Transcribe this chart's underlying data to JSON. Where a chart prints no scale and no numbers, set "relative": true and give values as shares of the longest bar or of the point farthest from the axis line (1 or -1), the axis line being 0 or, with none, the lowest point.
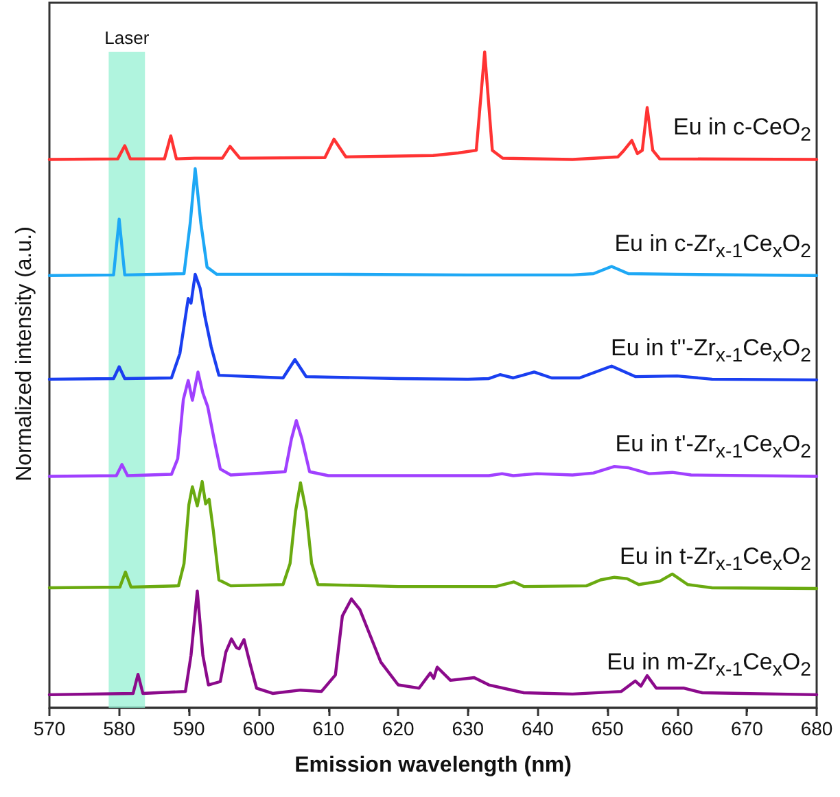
{
  "chart_data": {
    "type": "line",
    "relative": true,
    "xlabel": "Emission wavelength (nm)",
    "ylabel": "Normalized intensity (a.u.)",
    "xlim": [
      570,
      680
    ],
    "xticks": [
      570,
      580,
      590,
      600,
      610,
      620,
      630,
      640,
      650,
      660,
      670,
      680
    ],
    "grid": false,
    "legend": false,
    "marker": "none",
    "line_style": "solid",
    "bands": [
      {
        "axis": "x",
        "from": 578.5,
        "to": 583.7,
        "label": "Laser",
        "color": "#8ff0d0"
      }
    ],
    "series": [
      {
        "name": "Eu in c-CeO$_{2}$",
        "color": "#ff3333",
        "x": [
          570,
          579.8,
          580.8,
          581.6,
          586.5,
          587.4,
          588.2,
          590.8,
          594.8,
          595.9,
          597.3,
          609.5,
          610.8,
          612.5,
          625,
          628.6,
          631.2,
          632.4,
          633.5,
          635,
          645,
          651.5,
          652.3,
          653.5,
          654.3,
          655,
          655.7,
          656.5,
          657.5,
          680
        ],
        "values": [
          0.836,
          0.837,
          0.857,
          0.837,
          0.837,
          0.872,
          0.837,
          0.838,
          0.838,
          0.856,
          0.838,
          0.839,
          0.867,
          0.84,
          0.842,
          0.846,
          0.85,
          1.0,
          0.85,
          0.838,
          0.836,
          0.84,
          0.849,
          0.865,
          0.845,
          0.85,
          0.915,
          0.85,
          0.837,
          0.836
        ]
      },
      {
        "name": "Eu in c-Zr$_{x-1}$Ce$_{x}$O$_{2}$",
        "color": "#1ea8f5",
        "x": [
          570,
          579.2,
          580.0,
          580.8,
          589.3,
          590.2,
          590.9,
          591.7,
          592.6,
          594,
          610,
          630,
          645,
          648,
          650.6,
          653,
          660,
          680
        ],
        "values": [
          0.659,
          0.66,
          0.745,
          0.66,
          0.662,
          0.74,
          0.822,
          0.74,
          0.672,
          0.661,
          0.661,
          0.66,
          0.66,
          0.662,
          0.673,
          0.662,
          0.661,
          0.659
        ]
      },
      {
        "name": "Eu in t''-Zr$_{x-1}$Ce$_{x}$O$_{2}$",
        "color": "#1a3ff0",
        "x": [
          570,
          579.2,
          580,
          580.8,
          587.5,
          588.7,
          589.9,
          590.3,
          590.9,
          591.6,
          592.3,
          593.2,
          594.3,
          603.5,
          605.2,
          606.8,
          620,
          630,
          633,
          634.6,
          636.5,
          639.5,
          642,
          646,
          650.6,
          654,
          660,
          665,
          680
        ],
        "values": [
          0.501,
          0.502,
          0.52,
          0.502,
          0.503,
          0.54,
          0.624,
          0.617,
          0.661,
          0.64,
          0.596,
          0.55,
          0.507,
          0.503,
          0.531,
          0.505,
          0.502,
          0.501,
          0.502,
          0.508,
          0.503,
          0.512,
          0.503,
          0.503,
          0.521,
          0.505,
          0.506,
          0.501,
          0.5
        ]
      },
      {
        "name": "Eu in t'-Zr$_{x-1}$Ce$_{x}$O$_{2}$",
        "color": "#a040ff",
        "x": [
          570,
          579.6,
          580.4,
          581.2,
          587.5,
          588.4,
          589.2,
          589.9,
          590.5,
          591.3,
          592,
          592.7,
          593.6,
          594.5,
          596,
          603.8,
          604.7,
          605.4,
          606.2,
          607.3,
          610,
          633,
          634.9,
          636.5,
          639.9,
          645,
          648,
          651,
          653,
          656,
          659.3,
          662,
          680
        ],
        "values": [
          0.353,
          0.354,
          0.371,
          0.354,
          0.356,
          0.38,
          0.47,
          0.499,
          0.469,
          0.512,
          0.48,
          0.459,
          0.41,
          0.364,
          0.355,
          0.36,
          0.41,
          0.438,
          0.41,
          0.36,
          0.354,
          0.354,
          0.357,
          0.354,
          0.357,
          0.355,
          0.358,
          0.368,
          0.366,
          0.357,
          0.359,
          0.355,
          0.353
        ]
      },
      {
        "name": "Eu in t-Zr$_{x-1}$Ce$_{x}$O$_{2}$",
        "color": "#6aaa10",
        "x": [
          570,
          580.1,
          580.9,
          581.7,
          588.5,
          589.3,
          590,
          590.5,
          591.2,
          591.9,
          592.4,
          592.9,
          593.5,
          594.3,
          596,
          603.5,
          604.5,
          605.3,
          606,
          606.8,
          607.6,
          608.5,
          620,
          634,
          636.6,
          638,
          647,
          649,
          651,
          652.8,
          654.5,
          657.5,
          659.3,
          661.5,
          665,
          680
        ],
        "values": [
          0.183,
          0.184,
          0.207,
          0.184,
          0.186,
          0.22,
          0.31,
          0.337,
          0.308,
          0.345,
          0.311,
          0.318,
          0.27,
          0.195,
          0.186,
          0.188,
          0.22,
          0.3,
          0.343,
          0.3,
          0.22,
          0.188,
          0.185,
          0.185,
          0.192,
          0.185,
          0.186,
          0.195,
          0.199,
          0.197,
          0.188,
          0.193,
          0.204,
          0.188,
          0.183,
          0.182
        ]
      },
      {
        "name": "Eu in m-Zr$_{x-1}$Ce$_{x}$O$_{2}$",
        "color": "#8b0a8b",
        "x": [
          570,
          582,
          582.7,
          583.4,
          589.5,
          590.3,
          591.2,
          592,
          592.8,
          594.5,
          595.3,
          596.1,
          596.8,
          597.2,
          597.9,
          598.7,
          599.7,
          602,
          606,
          609,
          611,
          612,
          613.3,
          614.5,
          616,
          617.5,
          620,
          623,
          624.6,
          625.1,
          625.6,
          627.5,
          630.9,
          633,
          638,
          645,
          652,
          654,
          654.8,
          655.7,
          657,
          659.3,
          661,
          663.6,
          680
        ],
        "values": [
          0.02,
          0.022,
          0.051,
          0.022,
          0.025,
          0.08,
          0.178,
          0.08,
          0.035,
          0.04,
          0.085,
          0.105,
          0.092,
          0.09,
          0.104,
          0.07,
          0.03,
          0.022,
          0.027,
          0.025,
          0.05,
          0.14,
          0.166,
          0.15,
          0.11,
          0.07,
          0.035,
          0.03,
          0.053,
          0.045,
          0.062,
          0.042,
          0.046,
          0.035,
          0.023,
          0.021,
          0.025,
          0.041,
          0.033,
          0.049,
          0.03,
          0.03,
          0.03,
          0.023,
          0.02
        ]
      }
    ]
  }
}
